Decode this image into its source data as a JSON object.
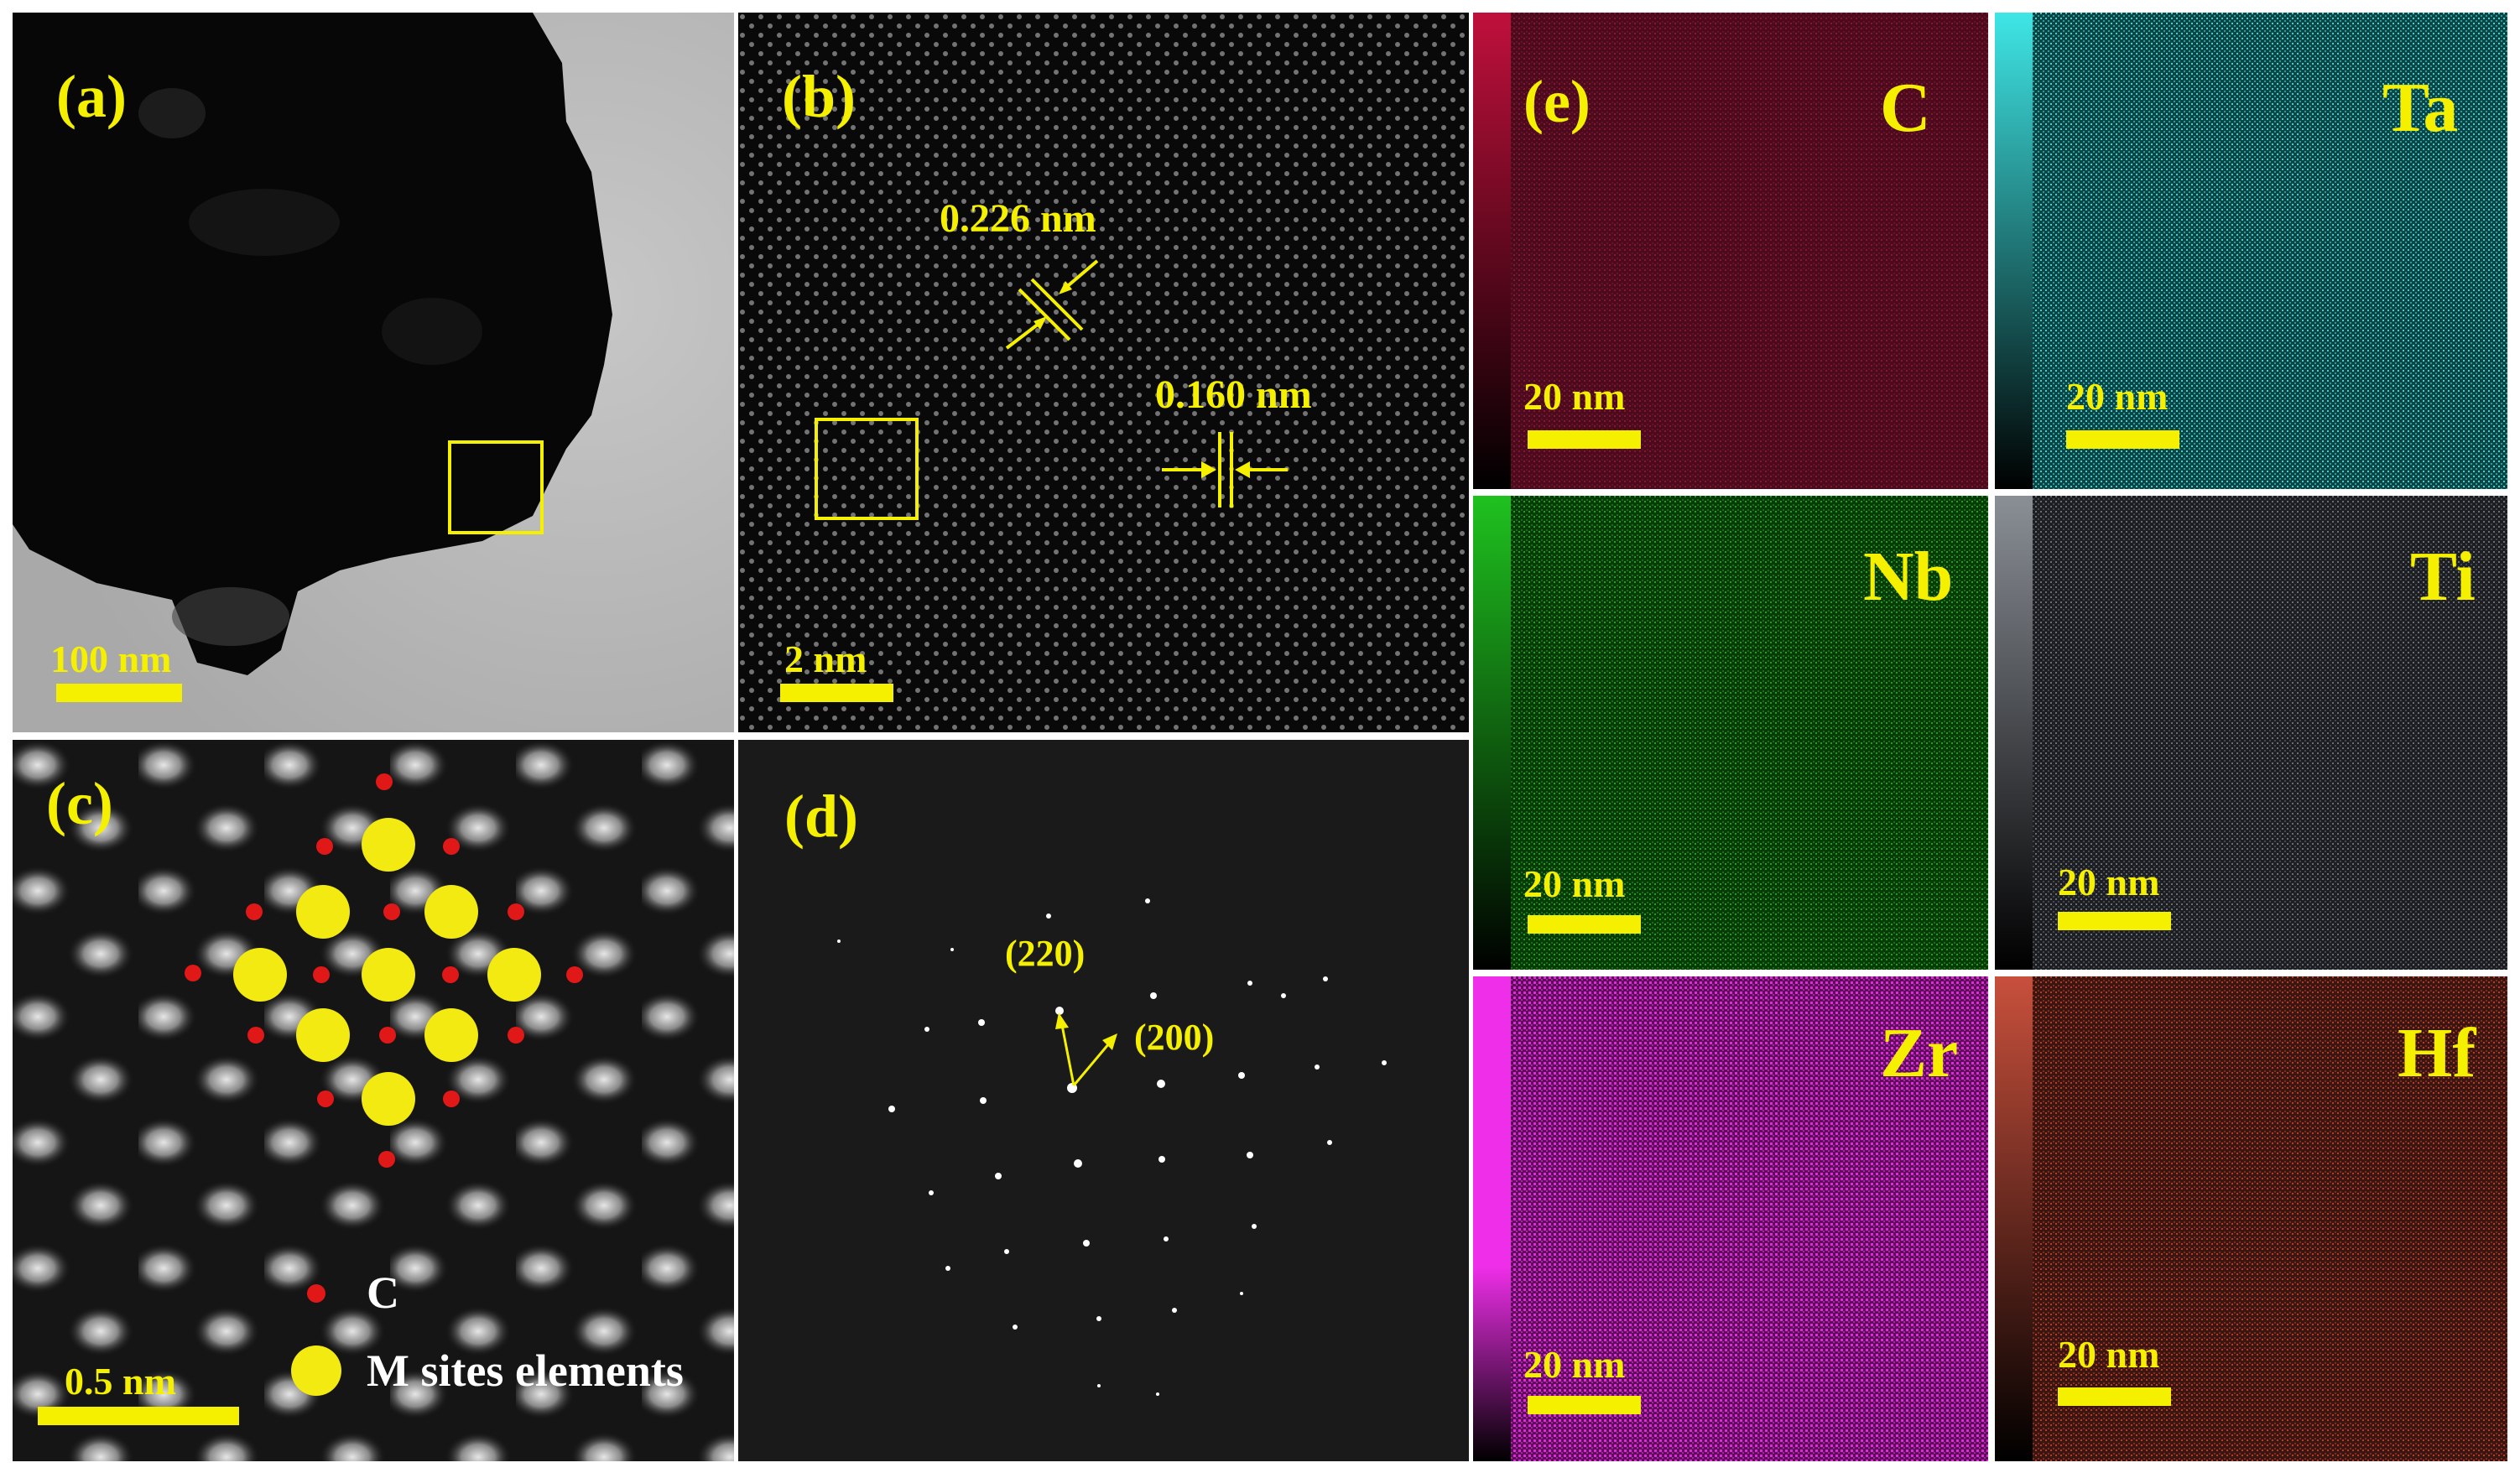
{
  "figure": {
    "panel_a": {
      "label": "(a)",
      "scale": "100 nm"
    },
    "panel_b": {
      "label": "(b)",
      "scale": "2 nm",
      "spacing_1": "0.226 nm",
      "spacing_2": "0.160 nm"
    },
    "panel_c": {
      "label": "(c)",
      "scale": "0.5 nm",
      "legend_c": "C",
      "legend_m": "M sites elements"
    },
    "panel_d": {
      "label": "(d)",
      "spot_1": "(220)",
      "spot_2": "(200)"
    },
    "panel_e": {
      "label": "(e)",
      "maps": [
        {
          "element": "C",
          "scale": "20 nm",
          "color": "#c0103c"
        },
        {
          "element": "Ta",
          "scale": "20 nm",
          "color": "#3fe6e6"
        },
        {
          "element": "Nb",
          "scale": "20 nm",
          "color": "#1fc21f"
        },
        {
          "element": "Ti",
          "scale": "20 nm",
          "color": "#8a8f96"
        },
        {
          "element": "Zr",
          "scale": "20 nm",
          "color": "#ee2ee8"
        },
        {
          "element": "Hf",
          "scale": "20 nm",
          "color": "#c8503c"
        }
      ]
    },
    "colors": {
      "annotation": "#f5f000",
      "carbon_atom": "#e01818",
      "metal_atom": "#f2ea10"
    }
  }
}
